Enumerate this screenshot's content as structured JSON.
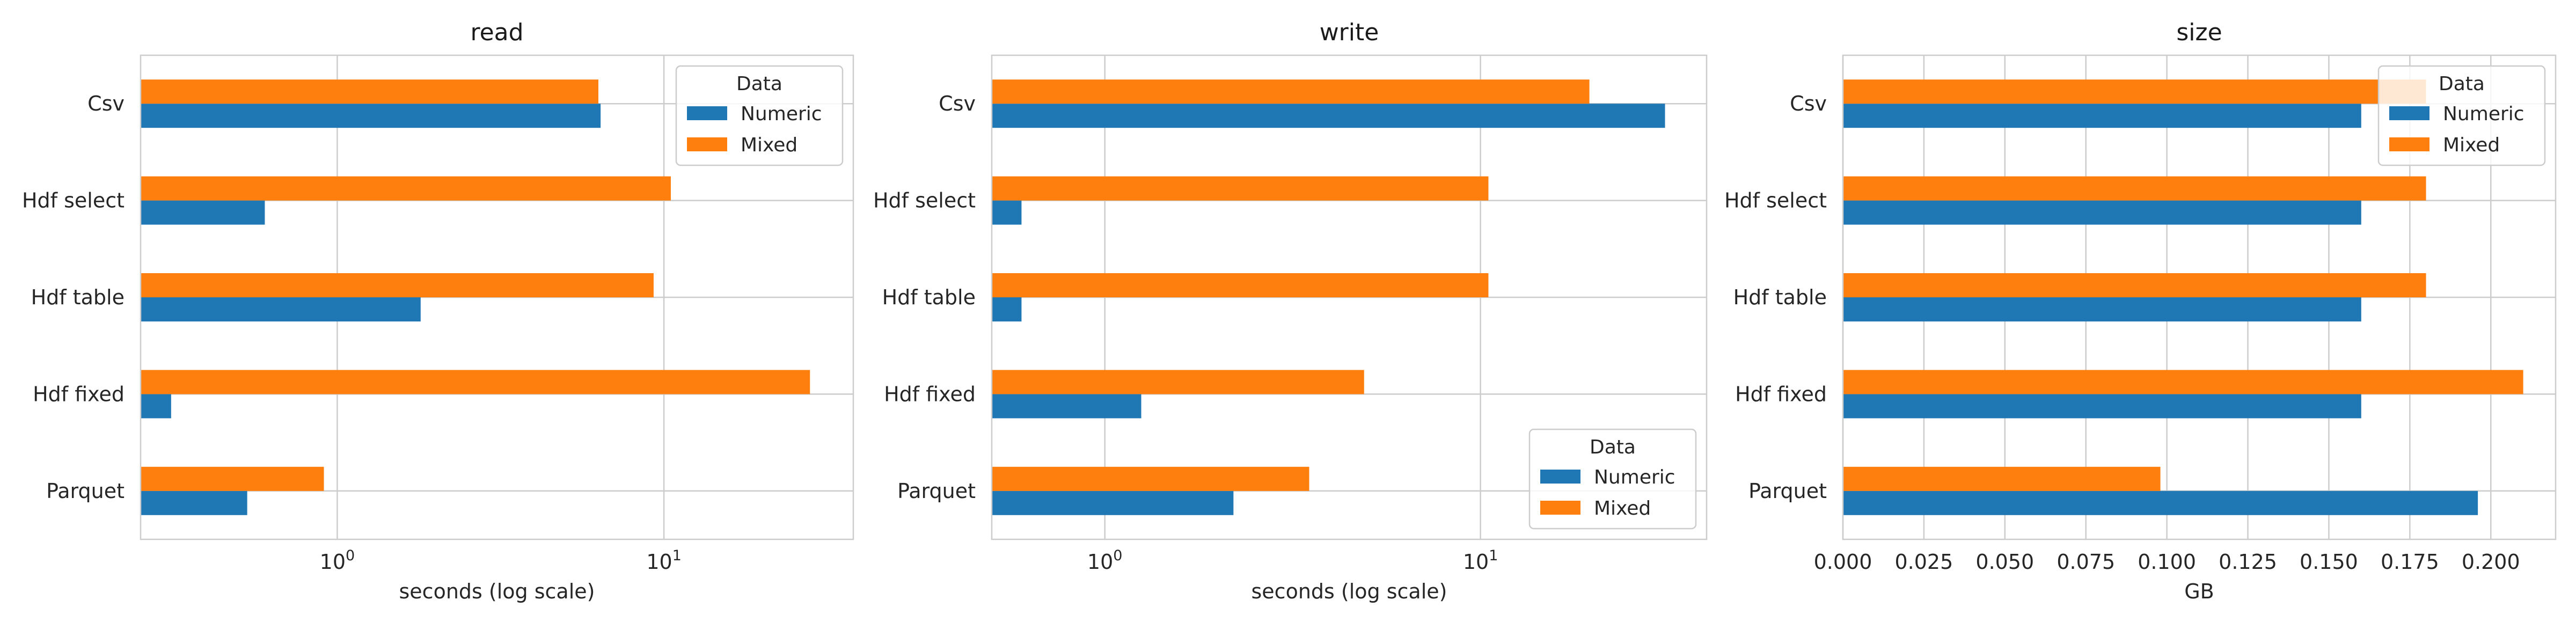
{
  "chart_data": [
    {
      "type": "bar",
      "orientation": "horizontal",
      "title": "read",
      "xlabel": "seconds (log scale)",
      "ylabel": "",
      "xscale": "log",
      "xlim": [
        0.25,
        38
      ],
      "xticks": [
        1,
        10
      ],
      "xtick_labels": [
        {
          "base": "10",
          "exp": "0"
        },
        {
          "base": "10",
          "exp": "1"
        }
      ],
      "categories": [
        "Csv",
        "Hdf select",
        "Hdf table",
        "Hdf fixed",
        "Parquet"
      ],
      "series": [
        {
          "name": "Numeric",
          "color": "#1f77b4",
          "values": [
            6.4,
            0.6,
            1.8,
            0.31,
            0.53
          ]
        },
        {
          "name": "Mixed",
          "color": "#ff7f0e",
          "values": [
            6.3,
            10.5,
            9.3,
            28.0,
            0.91
          ]
        }
      ],
      "legend": {
        "title": "Data",
        "position": "upper right"
      },
      "grid": true
    },
    {
      "type": "bar",
      "orientation": "horizontal",
      "title": "write",
      "xlabel": "seconds (log scale)",
      "ylabel": "",
      "xscale": "log",
      "xlim": [
        0.5,
        40
      ],
      "xticks": [
        1,
        10
      ],
      "xtick_labels": [
        {
          "base": "10",
          "exp": "0"
        },
        {
          "base": "10",
          "exp": "1"
        }
      ],
      "categories": [
        "Csv",
        "Hdf select",
        "Hdf table",
        "Hdf fixed",
        "Parquet"
      ],
      "series": [
        {
          "name": "Numeric",
          "color": "#1f77b4",
          "values": [
            31.0,
            0.6,
            0.6,
            1.25,
            2.2
          ]
        },
        {
          "name": "Mixed",
          "color": "#ff7f0e",
          "values": [
            19.5,
            10.5,
            10.5,
            4.9,
            3.5
          ]
        }
      ],
      "legend": {
        "title": "Data",
        "position": "lower right"
      },
      "grid": true
    },
    {
      "type": "bar",
      "orientation": "horizontal",
      "title": "size",
      "xlabel": "GB",
      "ylabel": "",
      "xscale": "linear",
      "xlim": [
        0,
        0.22
      ],
      "xticks": [
        0,
        0.025,
        0.05,
        0.075,
        0.1,
        0.125,
        0.15,
        0.175,
        0.2
      ],
      "xtick_labels": [
        "0.000",
        "0.025",
        "0.050",
        "0.075",
        "0.100",
        "0.125",
        "0.150",
        "0.175",
        "0.200"
      ],
      "categories": [
        "Csv",
        "Hdf select",
        "Hdf table",
        "Hdf fixed",
        "Parquet"
      ],
      "series": [
        {
          "name": "Numeric",
          "color": "#1f77b4",
          "values": [
            0.16,
            0.16,
            0.16,
            0.16,
            0.196
          ]
        },
        {
          "name": "Mixed",
          "color": "#ff7f0e",
          "values": [
            0.18,
            0.18,
            0.18,
            0.21,
            0.098
          ]
        }
      ],
      "legend": {
        "title": "Data",
        "position": "upper right"
      },
      "grid": true
    }
  ]
}
